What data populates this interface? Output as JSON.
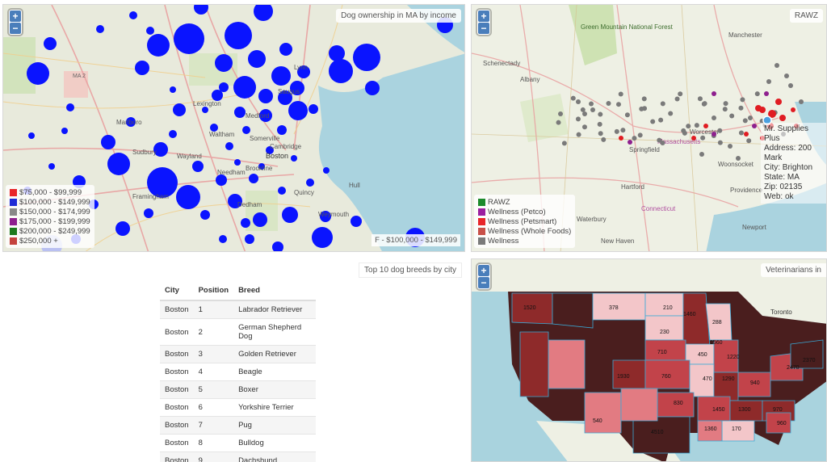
{
  "panel1": {
    "title": "Dog ownership in MA by income",
    "zoom_in": "+",
    "zoom_out": "−",
    "legend": [
      {
        "label": "$75,000 - $99,999",
        "color": "#e8262a"
      },
      {
        "label": "$100,000 - $149,999",
        "color": "#1f2bd6"
      },
      {
        "label": "$150,000 - $174,999",
        "color": "#888888"
      },
      {
        "label": "$175,000 - $199,999",
        "color": "#8e1f8e"
      },
      {
        "label": "$200,000 - $249,999",
        "color": "#1c7a1c"
      },
      {
        "label": "$250,000 +",
        "color": "#c4423c"
      }
    ],
    "footer": "F - $100,000 - $149,999",
    "place_labels": [
      "Boston",
      "Lynn",
      "Somerville",
      "Waltham",
      "Hull",
      "Framingham",
      "Marlboro",
      "Wayland",
      "Needham",
      "Quincy",
      "Saugus",
      "Medford",
      "Lexington",
      "Sudbury",
      "Dedham",
      "Brookline",
      "Cambridge",
      "Weymouth",
      "MA 2"
    ]
  },
  "panel2": {
    "title": "RAWZ",
    "zoom_in": "+",
    "zoom_out": "−",
    "legend": [
      {
        "label": "RAWZ",
        "color": "#1c8a2c"
      },
      {
        "label": "Wellness (Petco)",
        "color": "#9b1fa0"
      },
      {
        "label": "Wellness (Petsmart)",
        "color": "#e8262a"
      },
      {
        "label": "Wellness (Whole Foods)",
        "color": "#c85048"
      },
      {
        "label": "Wellness",
        "color": "#7a7a7a"
      }
    ],
    "popup": {
      "name": "Mr. Supplies Plus",
      "address": "Address: 200 Mark",
      "city": "City: Brighton",
      "state": "State: MA",
      "zip": "Zip: 02135",
      "web": "Web: ok"
    },
    "place_labels": [
      "Green Mountain National Forest",
      "Manchester",
      "Schenectady",
      "Albany",
      "Springfield",
      "Hartford",
      "Providence",
      "Waterbury",
      "New Haven",
      "Newport",
      "Woonsocket",
      "Massachusetts",
      "Connecticut",
      "Worcester"
    ]
  },
  "panel3": {
    "title": "Top 10 dog breeds by city",
    "columns": [
      "City",
      "Position",
      "Breed"
    ],
    "rows": [
      {
        "city": "Boston",
        "position": "1",
        "breed": "Labrador Retriever"
      },
      {
        "city": "Boston",
        "position": "2",
        "breed": "German Shepherd Dog"
      },
      {
        "city": "Boston",
        "position": "3",
        "breed": "Golden Retriever"
      },
      {
        "city": "Boston",
        "position": "4",
        "breed": "Beagle"
      },
      {
        "city": "Boston",
        "position": "5",
        "breed": "Boxer"
      },
      {
        "city": "Boston",
        "position": "6",
        "breed": "Yorkshire Terrier"
      },
      {
        "city": "Boston",
        "position": "7",
        "breed": "Pug"
      },
      {
        "city": "Boston",
        "position": "8",
        "breed": "Bulldog"
      },
      {
        "city": "Boston",
        "position": "9",
        "breed": "Dachshund"
      }
    ]
  },
  "panel4": {
    "title": "Veterinarians in",
    "zoom_in": "+",
    "zoom_out": "−",
    "place_labels": [
      "Toronto"
    ],
    "state_values": [
      "1520",
      "1460",
      "378",
      "210",
      "230",
      "288",
      "1560",
      "710",
      "450",
      "1220",
      "1930",
      "760",
      "470",
      "1290",
      "2470",
      "2370",
      "940",
      "830",
      "1450",
      "1300",
      "970",
      "540",
      "170",
      "1360",
      "4510",
      "960"
    ],
    "colors": {
      "dark": "#4a1e1e",
      "deep": "#8e2a2a",
      "mid": "#c2434a",
      "light": "#e27b82",
      "pale": "#f3c6c9"
    }
  }
}
